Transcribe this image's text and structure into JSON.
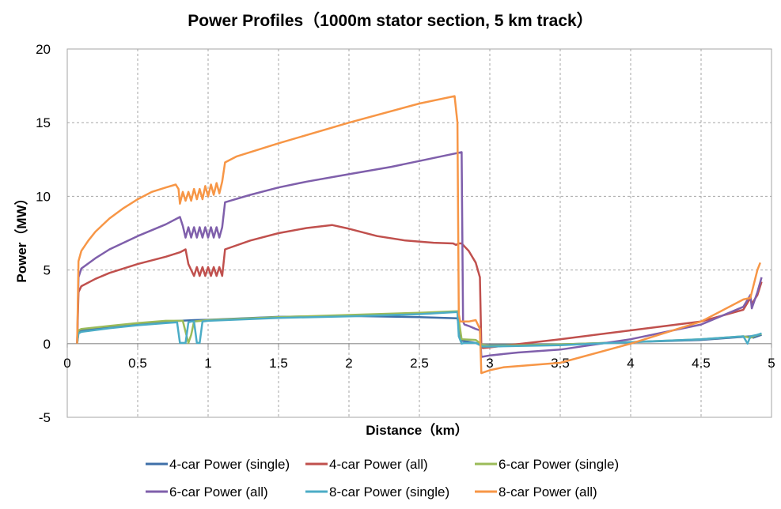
{
  "chart_data": {
    "type": "line",
    "title": "Power Profiles（1000m stator section, 5 km track）",
    "xlabel": "Distance（km）",
    "ylabel": "Power（MW）",
    "xlim": [
      0,
      5
    ],
    "ylim": [
      -5,
      20
    ],
    "xticks": [
      0,
      0.5,
      1,
      1.5,
      2,
      2.5,
      3,
      3.5,
      4,
      4.5,
      5
    ],
    "xtick_labels": [
      "0",
      "0.5",
      "1",
      "1.5",
      "2",
      "2.5",
      "3",
      "3.5",
      "4",
      "4.5",
      "5"
    ],
    "yticks": [
      -5,
      0,
      5,
      10,
      15,
      20
    ],
    "ytick_labels": [
      "-5",
      "0",
      "5",
      "10",
      "15",
      "20"
    ],
    "grid": true,
    "grid_style": "dashed",
    "legend_position": "bottom",
    "series": [
      {
        "name": "4-car Power (single)",
        "color": "#3E6FA8",
        "x": [
          0.07,
          0.08,
          0.1,
          0.3,
          0.5,
          0.7,
          0.8,
          0.9,
          1.0,
          1.5,
          2.0,
          2.5,
          2.77,
          2.78,
          2.8,
          2.9,
          2.95,
          3.0,
          3.5,
          4.0,
          4.5,
          4.85,
          4.87,
          4.9,
          4.93
        ],
        "y": [
          0,
          0.8,
          0.9,
          1.15,
          1.35,
          1.5,
          1.55,
          1.6,
          1.62,
          1.82,
          1.88,
          1.8,
          1.72,
          1.2,
          0.2,
          0.05,
          -0.1,
          -0.1,
          -0.05,
          0.1,
          0.25,
          0.5,
          0.4,
          0.5,
          0.6
        ]
      },
      {
        "name": "4-car Power (all)",
        "color": "#C0504D",
        "x": [
          0.07,
          0.08,
          0.1,
          0.2,
          0.3,
          0.5,
          0.7,
          0.8,
          0.82,
          0.84,
          0.86,
          0.88,
          0.9,
          0.92,
          0.94,
          0.96,
          0.98,
          1.0,
          1.02,
          1.04,
          1.06,
          1.08,
          1.1,
          1.12,
          1.3,
          1.5,
          1.7,
          1.88,
          2.0,
          2.2,
          2.4,
          2.6,
          2.74,
          2.76,
          2.78,
          2.8,
          2.85,
          2.9,
          2.93,
          2.94,
          2.95,
          3.0,
          3.5,
          4.0,
          4.5,
          4.8,
          4.85,
          4.86,
          4.9,
          4.93
        ],
        "y": [
          0,
          3.5,
          3.9,
          4.4,
          4.8,
          5.4,
          5.9,
          6.2,
          6.3,
          6.4,
          5.4,
          5.0,
          4.6,
          5.2,
          4.6,
          5.2,
          4.6,
          5.2,
          4.6,
          5.2,
          4.6,
          5.2,
          4.6,
          6.4,
          7.0,
          7.5,
          7.85,
          8.05,
          7.8,
          7.3,
          7.0,
          6.85,
          6.8,
          6.7,
          6.8,
          6.8,
          6.3,
          5.5,
          4.5,
          -0.2,
          -0.3,
          -0.25,
          0.3,
          0.9,
          1.5,
          2.3,
          3.1,
          2.7,
          3.3,
          4.2
        ]
      },
      {
        "name": "6-car Power (single)",
        "color": "#9BBB59",
        "x": [
          0.07,
          0.08,
          0.1,
          0.3,
          0.5,
          0.7,
          0.82,
          0.86,
          0.88,
          0.9,
          1.0,
          1.5,
          2.0,
          2.5,
          2.77,
          2.78,
          2.8,
          2.9,
          2.95,
          3.0,
          3.5,
          4.0,
          4.5,
          4.8,
          4.85,
          4.9,
          4.93
        ],
        "y": [
          0,
          0.9,
          1.0,
          1.2,
          1.4,
          1.55,
          1.55,
          0.05,
          0.6,
          1.5,
          1.6,
          1.8,
          1.95,
          2.1,
          2.2,
          1.6,
          0.3,
          0.25,
          -0.1,
          -0.15,
          -0.05,
          0.1,
          0.3,
          0.5,
          0.4,
          0.6,
          0.65
        ]
      },
      {
        "name": "6-car Power (all)",
        "color": "#7F5FAB",
        "x": [
          0.07,
          0.08,
          0.1,
          0.2,
          0.3,
          0.5,
          0.7,
          0.8,
          0.82,
          0.84,
          0.86,
          0.88,
          0.9,
          0.92,
          0.94,
          0.96,
          0.98,
          1.0,
          1.02,
          1.04,
          1.06,
          1.08,
          1.1,
          1.12,
          1.3,
          1.5,
          1.7,
          2.0,
          2.3,
          2.5,
          2.7,
          2.8,
          2.81,
          2.82,
          2.85,
          2.9,
          2.93,
          2.94,
          3.0,
          3.2,
          3.5,
          4.0,
          4.5,
          4.8,
          4.85,
          4.86,
          4.9,
          4.93
        ],
        "y": [
          0,
          4.5,
          5.1,
          5.8,
          6.4,
          7.3,
          8.1,
          8.6,
          8.0,
          7.2,
          7.9,
          7.2,
          7.9,
          7.2,
          7.9,
          7.2,
          7.9,
          7.2,
          7.9,
          7.2,
          7.9,
          7.2,
          7.9,
          9.6,
          10.1,
          10.6,
          11.0,
          11.5,
          12.0,
          12.4,
          12.8,
          13.0,
          1.5,
          1.3,
          1.2,
          1.0,
          0.9,
          -0.9,
          -0.8,
          -0.6,
          -0.4,
          0.3,
          1.3,
          2.5,
          3.3,
          2.4,
          3.5,
          4.5
        ]
      },
      {
        "name": "8-car Power (single)",
        "color": "#4BACC6",
        "x": [
          0.07,
          0.08,
          0.1,
          0.3,
          0.5,
          0.7,
          0.78,
          0.8,
          0.84,
          0.86,
          0.88,
          0.9,
          0.92,
          0.94,
          0.96,
          1.0,
          1.5,
          2.0,
          2.5,
          2.77,
          2.78,
          2.8,
          2.82,
          2.9,
          2.95,
          3.0,
          3.5,
          4.0,
          4.5,
          4.8,
          4.83,
          4.85,
          4.9,
          4.93
        ],
        "y": [
          0,
          0.7,
          0.8,
          1.05,
          1.25,
          1.4,
          1.45,
          0.05,
          0.05,
          1.45,
          1.5,
          1.5,
          0.05,
          0.05,
          1.5,
          1.55,
          1.75,
          1.85,
          2.0,
          2.15,
          0.5,
          0.0,
          0.05,
          0.05,
          -0.2,
          -0.2,
          -0.1,
          0.1,
          0.3,
          0.5,
          0.0,
          0.5,
          0.6,
          0.7
        ]
      },
      {
        "name": "8-car Power (all)",
        "color": "#F79646",
        "x": [
          0.07,
          0.08,
          0.1,
          0.15,
          0.2,
          0.3,
          0.4,
          0.5,
          0.6,
          0.7,
          0.77,
          0.79,
          0.8,
          0.82,
          0.84,
          0.86,
          0.88,
          0.9,
          0.92,
          0.94,
          0.96,
          0.98,
          1.0,
          1.02,
          1.04,
          1.06,
          1.08,
          1.1,
          1.12,
          1.2,
          1.5,
          2.0,
          2.5,
          2.75,
          2.77,
          2.78,
          2.79,
          2.85,
          2.9,
          2.93,
          2.94,
          3.0,
          3.1,
          3.5,
          4.0,
          4.5,
          4.8,
          4.85,
          4.9,
          4.92
        ],
        "y": [
          0,
          5.6,
          6.3,
          7.0,
          7.6,
          8.5,
          9.2,
          9.8,
          10.3,
          10.6,
          10.8,
          10.5,
          9.5,
          10.3,
          9.7,
          10.3,
          9.7,
          10.5,
          9.8,
          10.5,
          9.8,
          10.7,
          10.0,
          10.8,
          10.1,
          10.9,
          10.2,
          11.0,
          12.3,
          12.7,
          13.6,
          15.0,
          16.3,
          16.8,
          15.0,
          2.0,
          1.5,
          1.5,
          1.6,
          1.0,
          -2.0,
          -1.8,
          -1.6,
          -1.3,
          0.0,
          1.5,
          3.0,
          3.1,
          5.0,
          5.5
        ]
      }
    ]
  }
}
